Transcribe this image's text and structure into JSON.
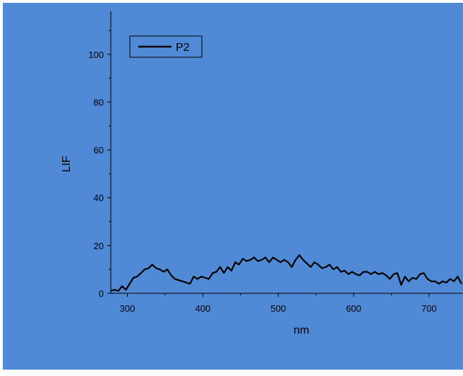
{
  "chart_data": {
    "type": "line",
    "xlabel": "nm",
    "ylabel": "LIF",
    "xlim": [
      278,
      745
    ],
    "ylim": [
      0,
      118
    ],
    "x_ticks": [
      300,
      400,
      500,
      600,
      700
    ],
    "y_ticks": [
      0,
      20,
      40,
      60,
      80,
      100
    ],
    "grid": false,
    "legend_position": "top-left",
    "background_color": "#5089d5",
    "line_color": "#000000",
    "series": [
      {
        "name": "P2",
        "x": [
          278,
          283,
          288,
          293,
          298,
          303,
          308,
          313,
          318,
          323,
          328,
          333,
          338,
          343,
          348,
          353,
          358,
          363,
          368,
          373,
          378,
          383,
          388,
          393,
          398,
          403,
          408,
          413,
          418,
          423,
          428,
          433,
          438,
          443,
          448,
          453,
          458,
          463,
          468,
          473,
          478,
          483,
          488,
          493,
          498,
          503,
          508,
          513,
          518,
          523,
          528,
          533,
          538,
          543,
          548,
          553,
          558,
          563,
          568,
          573,
          578,
          583,
          588,
          593,
          598,
          603,
          608,
          613,
          618,
          623,
          628,
          633,
          638,
          643,
          648,
          653,
          658,
          663,
          668,
          673,
          678,
          683,
          688,
          693,
          698,
          703,
          708,
          713,
          718,
          723,
          728,
          733,
          738,
          743
        ],
        "y": [
          1,
          1.5,
          1,
          3,
          1.5,
          4,
          6.5,
          7,
          8.5,
          10,
          10.5,
          12,
          10.5,
          10,
          9,
          10,
          7.5,
          6,
          5.5,
          5,
          4.5,
          4,
          7,
          6,
          7,
          6.5,
          6,
          8.5,
          9,
          11,
          8.5,
          11,
          9.5,
          13,
          12,
          14.5,
          13.5,
          14,
          15,
          13.5,
          14,
          15,
          13,
          15,
          14,
          13,
          14,
          13,
          11,
          14,
          16,
          14,
          12.5,
          11,
          13,
          12,
          10.5,
          11,
          12,
          10,
          11,
          9,
          9.5,
          8,
          9,
          8,
          7.5,
          9,
          9,
          8,
          9,
          8,
          8.5,
          7.5,
          6,
          8,
          8.5,
          3.5,
          7,
          5,
          6.5,
          6,
          8,
          8.5,
          6,
          5,
          5,
          4,
          5,
          4.5,
          6,
          5,
          7,
          4
        ]
      }
    ]
  }
}
